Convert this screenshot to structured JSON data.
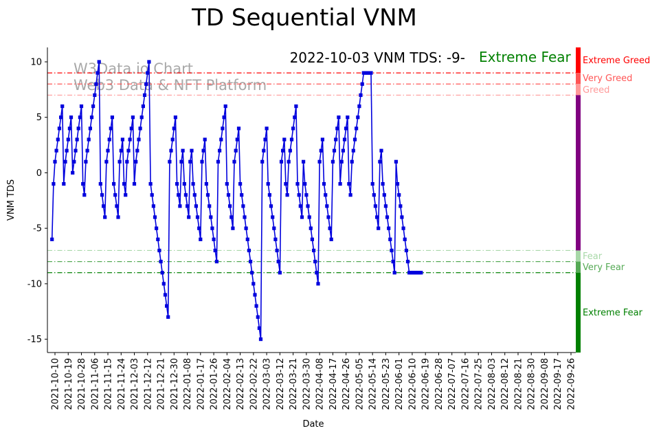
{
  "chart_data": {
    "type": "line",
    "title": "TD Sequential VNM",
    "subtitle": "2022-10-03 VNM TDS: -9-",
    "status_label": "Extreme Fear",
    "xlabel": "Date",
    "ylabel": "VNM TDS",
    "ylim": [
      -16.2,
      11.3
    ],
    "yticks": [
      10,
      5,
      0,
      -5,
      -10,
      -15
    ],
    "xticks": [
      "2021-10-10",
      "2021-10-19",
      "2021-10-28",
      "2021-11-06",
      "2021-11-15",
      "2021-11-24",
      "2021-12-03",
      "2021-12-12",
      "2021-12-21",
      "2021-12-30",
      "2022-01-08",
      "2022-01-17",
      "2022-01-26",
      "2022-02-04",
      "2022-02-13",
      "2022-02-22",
      "2022-03-03",
      "2022-03-12",
      "2022-03-21",
      "2022-03-30",
      "2022-04-08",
      "2022-04-17",
      "2022-04-26",
      "2022-05-05",
      "2022-05-14",
      "2022-05-23",
      "2022-06-01",
      "2022-06-10",
      "2022-06-19",
      "2022-06-28",
      "2022-07-07",
      "2022-07-16",
      "2022-07-25",
      "2022-08-03",
      "2022-08-12",
      "2022-08-21",
      "2022-08-30",
      "2022-09-08",
      "2022-09-17",
      "2022-09-26"
    ],
    "watermark": [
      "W3Data.io Chart",
      "Web3 Data & NFT Platform"
    ],
    "thresholds": [
      {
        "label": "Extreme Greed",
        "value": 9,
        "color": "#ff0000"
      },
      {
        "label": "Very Greed",
        "value": 8,
        "color": "#ff5555"
      },
      {
        "label": "Greed",
        "value": 7,
        "color": "#ff9999"
      },
      {
        "label": "Fear",
        "value": -7,
        "color": "#a8d8a8"
      },
      {
        "label": "Very Fear",
        "value": -8,
        "color": "#55aa55"
      },
      {
        "label": "Extreme Fear",
        "value": -9,
        "color": "#008000"
      }
    ],
    "zone_colors": {
      "extreme_greed": "#ff0000",
      "neutral": "#800080",
      "extreme_fear": "#008000"
    },
    "grid": false,
    "series": [
      {
        "color": "#0000dd",
        "x_start": "2021-10-08",
        "values": [
          -6,
          -1,
          1,
          2,
          3,
          4,
          5,
          6,
          -1,
          1,
          2,
          3,
          4,
          5,
          0,
          1,
          2,
          3,
          4,
          5,
          6,
          -1,
          -2,
          1,
          2,
          3,
          4,
          5,
          6,
          7,
          8,
          9,
          10,
          -1,
          -2,
          -3,
          -4,
          1,
          2,
          3,
          4,
          5,
          -1,
          -2,
          -3,
          -4,
          1,
          2,
          3,
          -1,
          -2,
          1,
          2,
          3,
          4,
          5,
          -1,
          1,
          2,
          3,
          4,
          5,
          6,
          7,
          8,
          9,
          10,
          -1,
          -2,
          -3,
          -4,
          -5,
          -6,
          -7,
          -8,
          -9,
          -10,
          -11,
          -12,
          -13,
          1,
          2,
          3,
          4,
          5,
          -1,
          -2,
          -3,
          1,
          2,
          -1,
          -2,
          -3,
          -4,
          1,
          2,
          -1,
          -2,
          -3,
          -4,
          -5,
          -6,
          1,
          2,
          3,
          -1,
          -2,
          -3,
          -4,
          -5,
          -6,
          -7,
          -8,
          1,
          2,
          3,
          4,
          5,
          6,
          -1,
          -2,
          -3,
          -4,
          -5,
          1,
          2,
          3,
          4,
          -1,
          -2,
          -3,
          -4,
          -5,
          -6,
          -7,
          -8,
          -9,
          -10,
          -11,
          -12,
          -13,
          -14,
          -15,
          1,
          2,
          3,
          4,
          -1,
          -2,
          -3,
          -4,
          -5,
          -6,
          -7,
          -8,
          -9,
          1,
          2,
          3,
          -1,
          -2,
          1,
          2,
          3,
          4,
          5,
          6,
          -1,
          -2,
          -3,
          -4,
          1,
          -1,
          -2,
          -3,
          -4,
          -5,
          -6,
          -7,
          -8,
          -9,
          -10,
          1,
          2,
          3,
          -1,
          -2,
          -3,
          -4,
          -5,
          -6,
          1,
          2,
          3,
          4,
          5,
          -1,
          1,
          2,
          3,
          4,
          5,
          -1,
          -2,
          1,
          2,
          3,
          4,
          5,
          6,
          7,
          8,
          9,
          9,
          9,
          9,
          9,
          9,
          -1,
          -2,
          -3,
          -4,
          -5,
          1,
          2,
          -1,
          -2,
          -3,
          -4,
          -5,
          -6,
          -7,
          -8,
          -9,
          1,
          -1,
          -2,
          -3,
          -4,
          -5,
          -6,
          -7,
          -8,
          -9,
          -9,
          -9,
          -9,
          -9,
          -9,
          -9,
          -9,
          -9
        ]
      }
    ]
  }
}
